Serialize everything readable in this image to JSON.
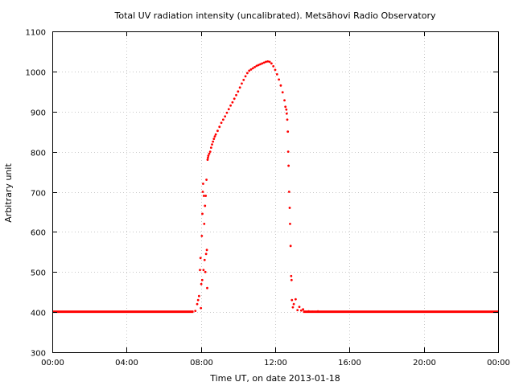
{
  "chart_data": {
    "type": "scatter",
    "title": "Total UV radiation intensity (uncalibrated). Metsähovi Radio Observatory",
    "xlabel": "Time UT, on date 2013-01-18",
    "ylabel": "Arbitrary unit",
    "xlim": [
      0,
      24
    ],
    "ylim": [
      300,
      1100
    ],
    "x_ticks": [
      0,
      4,
      8,
      12,
      16,
      20,
      24
    ],
    "x_tick_labels": [
      "00:00",
      "04:00",
      "08:00",
      "12:00",
      "16:00",
      "20:00",
      "00:00"
    ],
    "y_ticks": [
      300,
      400,
      500,
      600,
      700,
      800,
      900,
      1000,
      1100
    ],
    "y_tick_labels": [
      "300",
      "400",
      "500",
      "600",
      "700",
      "800",
      "900",
      "1000",
      "1100"
    ],
    "grid": true,
    "series_color": "#ff0000",
    "points": [
      [
        7.55,
        401
      ],
      [
        7.7,
        403
      ],
      [
        7.8,
        420
      ],
      [
        7.85,
        430
      ],
      [
        7.9,
        440
      ],
      [
        7.95,
        505
      ],
      [
        7.98,
        535
      ],
      [
        8.0,
        410
      ],
      [
        8.02,
        470
      ],
      [
        8.05,
        590
      ],
      [
        8.07,
        480
      ],
      [
        8.08,
        645
      ],
      [
        8.1,
        700
      ],
      [
        8.12,
        720
      ],
      [
        8.14,
        505
      ],
      [
        8.16,
        690
      ],
      [
        8.18,
        620
      ],
      [
        8.2,
        530
      ],
      [
        8.22,
        665
      ],
      [
        8.24,
        500
      ],
      [
        8.26,
        690
      ],
      [
        8.28,
        545
      ],
      [
        8.3,
        730
      ],
      [
        8.32,
        555
      ],
      [
        8.34,
        460
      ],
      [
        8.36,
        780
      ],
      [
        8.38,
        785
      ],
      [
        8.4,
        790
      ],
      [
        8.45,
        795
      ],
      [
        8.5,
        800
      ],
      [
        8.55,
        810
      ],
      [
        8.6,
        818
      ],
      [
        8.65,
        825
      ],
      [
        8.7,
        832
      ],
      [
        8.75,
        838
      ],
      [
        8.8,
        843
      ],
      [
        8.9,
        852
      ],
      [
        9.0,
        862
      ],
      [
        9.1,
        872
      ],
      [
        9.2,
        880
      ],
      [
        9.3,
        888
      ],
      [
        9.4,
        897
      ],
      [
        9.5,
        906
      ],
      [
        9.6,
        915
      ],
      [
        9.7,
        923
      ],
      [
        9.8,
        932
      ],
      [
        9.9,
        941
      ],
      [
        10.0,
        950
      ],
      [
        10.1,
        960
      ],
      [
        10.2,
        970
      ],
      [
        10.3,
        979
      ],
      [
        10.4,
        988
      ],
      [
        10.5,
        996
      ],
      [
        10.6,
        1002
      ],
      [
        10.7,
        1005
      ],
      [
        10.8,
        1008
      ],
      [
        10.9,
        1011
      ],
      [
        11.0,
        1014
      ],
      [
        11.1,
        1016
      ],
      [
        11.2,
        1018
      ],
      [
        11.3,
        1020
      ],
      [
        11.4,
        1022
      ],
      [
        11.5,
        1024
      ],
      [
        11.6,
        1025
      ],
      [
        11.7,
        1024
      ],
      [
        11.8,
        1020
      ],
      [
        11.9,
        1013
      ],
      [
        12.0,
        1004
      ],
      [
        12.1,
        993
      ],
      [
        12.2,
        980
      ],
      [
        12.3,
        965
      ],
      [
        12.4,
        948
      ],
      [
        12.5,
        928
      ],
      [
        12.55,
        912
      ],
      [
        12.6,
        905
      ],
      [
        12.62,
        895
      ],
      [
        12.65,
        880
      ],
      [
        12.68,
        850
      ],
      [
        12.7,
        800
      ],
      [
        12.72,
        765
      ],
      [
        12.75,
        700
      ],
      [
        12.78,
        660
      ],
      [
        12.8,
        620
      ],
      [
        12.83,
        565
      ],
      [
        12.86,
        490
      ],
      [
        12.88,
        480
      ],
      [
        12.9,
        430
      ],
      [
        12.95,
        412
      ],
      [
        13.0,
        420
      ],
      [
        13.1,
        432
      ],
      [
        13.2,
        405
      ],
      [
        13.3,
        413
      ],
      [
        13.4,
        404
      ],
      [
        13.5,
        407
      ],
      [
        13.6,
        401
      ],
      [
        13.8,
        402
      ],
      [
        14.0,
        401
      ],
      [
        14.3,
        402
      ]
    ]
  }
}
